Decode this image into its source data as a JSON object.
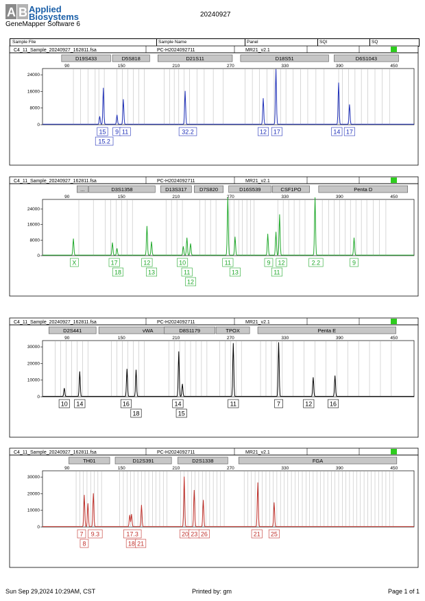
{
  "brand": {
    "line1": "Applied",
    "line2": "Biosystems",
    "software": "GeneMapper Software 6"
  },
  "report_date": "20240927",
  "table_header": {
    "sample_file": "Sample File",
    "sample_name": "Sample Name",
    "panel": "Panel",
    "sqi": "SQI",
    "sq": "SQ"
  },
  "footer": {
    "printed_at": "Sun Sep 29,2024 10:29AM, CST",
    "printed_by": "Printed by: gm",
    "page": "Page 1 of 1"
  },
  "colors": {
    "blue": "#1e2fb8",
    "green": "#1fa82a",
    "black": "#000000",
    "red": "#c0302a",
    "status": "#2ecc1e"
  },
  "chart_data": [
    {
      "type": "line",
      "sample_file": "C4_11_Sample_20240927_162811.fsa",
      "sample_name": "PC-H2024092711",
      "panel": "MR21_v2.1",
      "dye": "blue",
      "x_ticks": [
        90,
        150,
        210,
        270,
        330,
        390,
        450
      ],
      "xlim": [
        63,
        472
      ],
      "y_ticks": [
        0,
        8000,
        16000,
        24000
      ],
      "ylim": [
        0,
        28000
      ],
      "loci": [
        {
          "name": "D19S433",
          "start": 84,
          "end": 138
        },
        {
          "name": "D5S818",
          "start": 140,
          "end": 181
        },
        {
          "name": "D21S11",
          "start": 190,
          "end": 272
        },
        {
          "name": "D18S51",
          "start": 281,
          "end": 378
        },
        {
          "name": "D6S1043",
          "start": 384,
          "end": 455
        }
      ],
      "bins": [
        [
          97,
          105,
          113,
          121,
          125,
          131,
          145,
          151,
          157,
          163,
          169,
          175,
          197,
          203,
          208,
          213,
          219,
          225,
          233,
          241,
          251,
          262,
          286,
          294,
          302,
          310,
          318,
          325,
          331,
          339,
          347,
          355,
          364,
          373,
          389,
          393,
          400,
          407,
          414,
          421,
          429,
          437,
          445
        ]
      ],
      "peaks": [
        {
          "x": 126,
          "height": 3800
        },
        {
          "x": 130,
          "height": 17500
        },
        {
          "x": 145,
          "height": 4500
        },
        {
          "x": 152,
          "height": 12000
        },
        {
          "x": 220,
          "height": 16000
        },
        {
          "x": 306,
          "height": 12500
        },
        {
          "x": 320,
          "height": 26500
        },
        {
          "x": 389,
          "height": 20000
        },
        {
          "x": 401,
          "height": 9500
        }
      ],
      "label_rows": [
        [
          {
            "x": 129,
            "text": "15"
          },
          {
            "x": 145,
            "text": "9"
          },
          {
            "x": 154,
            "text": "11"
          },
          {
            "x": 223,
            "text": "32.2"
          },
          {
            "x": 306,
            "text": "12"
          },
          {
            "x": 321,
            "text": "17"
          },
          {
            "x": 387,
            "text": "14"
          },
          {
            "x": 401,
            "text": "17"
          }
        ],
        [
          {
            "x": 131,
            "text": "15.2"
          }
        ]
      ]
    },
    {
      "type": "line",
      "sample_file": "C4_11_Sample_20240927_162811.fsa",
      "sample_name": "PC-H2024092711",
      "panel": "MR21_v2.1",
      "dye": "green",
      "x_ticks": [
        90,
        150,
        210,
        270,
        330,
        390,
        450
      ],
      "xlim": [
        63,
        472
      ],
      "y_ticks": [
        0,
        8000,
        16000,
        24000
      ],
      "ylim": [
        0,
        30000
      ],
      "loci": [
        {
          "name": "...",
          "start": 101,
          "end": 113
        },
        {
          "name": "D3S1358",
          "start": 114,
          "end": 187
        },
        {
          "name": "D13S317",
          "start": 193,
          "end": 227
        },
        {
          "name": "D7S820",
          "start": 230,
          "end": 262
        },
        {
          "name": "D16S539",
          "start": 268,
          "end": 315
        },
        {
          "name": "CSF1PO",
          "start": 316,
          "end": 357
        },
        {
          "name": "Penta D",
          "start": 367,
          "end": 465
        }
      ],
      "bins": [
        [
          103,
          119,
          132,
          138,
          144,
          150,
          156,
          162,
          199,
          205,
          211,
          217,
          236,
          242,
          248,
          254,
          269,
          274,
          279,
          283,
          288,
          292,
          296,
          322,
          328,
          334,
          340,
          346,
          352,
          371,
          378,
          384,
          390,
          396,
          402,
          408,
          414,
          420,
          427,
          434,
          441
        ]
      ],
      "peaks": [
        {
          "x": 97,
          "height": 8500
        },
        {
          "x": 140,
          "height": 6500
        },
        {
          "x": 145,
          "height": 3500
        },
        {
          "x": 178,
          "height": 15000
        },
        {
          "x": 183,
          "height": 7000
        },
        {
          "x": 218,
          "height": 4500
        },
        {
          "x": 222,
          "height": 9000
        },
        {
          "x": 226,
          "height": 6000
        },
        {
          "x": 267,
          "height": 30000
        },
        {
          "x": 275,
          "height": 9500
        },
        {
          "x": 311,
          "height": 11000
        },
        {
          "x": 320,
          "height": 12000
        },
        {
          "x": 324,
          "height": 21000
        },
        {
          "x": 363,
          "height": 30000
        },
        {
          "x": 406,
          "height": 9000
        }
      ],
      "label_rows": [
        [
          {
            "x": 98,
            "text": "X"
          },
          {
            "x": 142,
            "text": "17"
          },
          {
            "x": 178,
            "text": "12"
          },
          {
            "x": 217,
            "text": "10"
          },
          {
            "x": 267,
            "text": "11"
          },
          {
            "x": 312,
            "text": "9"
          },
          {
            "x": 326,
            "text": "12"
          },
          {
            "x": 364,
            "text": "2.2"
          },
          {
            "x": 406,
            "text": "9"
          }
        ],
        [
          {
            "x": 146,
            "text": "18"
          },
          {
            "x": 183,
            "text": "13"
          },
          {
            "x": 222,
            "text": "11"
          },
          {
            "x": 275,
            "text": "13"
          },
          {
            "x": 321,
            "text": "11"
          }
        ],
        [
          {
            "x": 226,
            "text": "12"
          }
        ]
      ]
    },
    {
      "type": "line",
      "sample_file": "C4_11_Sample_20240927_162811.fsa",
      "sample_name": "PC-H2024092711",
      "panel": "MR21_v2.1",
      "dye": "black",
      "x_ticks": [
        90,
        150,
        210,
        270,
        330,
        390,
        450
      ],
      "xlim": [
        63,
        472
      ],
      "y_ticks": [
        0,
        10000,
        20000,
        30000
      ],
      "ylim": [
        0,
        35000
      ],
      "loci": [
        {
          "name": "D2S441",
          "start": 70,
          "end": 122
        },
        {
          "name": "vWA",
          "start": 125,
          "end": 233
        },
        {
          "name": "D8S1179",
          "start": 197,
          "end": 253
        },
        {
          "name": "TPOX",
          "start": 254,
          "end": 291
        },
        {
          "name": "Penta E",
          "start": 300,
          "end": 452
        }
      ],
      "bins": [
        [
          77,
          83,
          89,
          95,
          101,
          107,
          113,
          139,
          145,
          151,
          157,
          163,
          169,
          175,
          202,
          208,
          214,
          220,
          226,
          232,
          238,
          244,
          258,
          264,
          270,
          276,
          282,
          303,
          309,
          315,
          321,
          327,
          339,
          351,
          363,
          375,
          387,
          399,
          411,
          423,
          435,
          447
        ]
      ],
      "peaks": [
        {
          "x": 87,
          "height": 5000
        },
        {
          "x": 104,
          "height": 15000
        },
        {
          "x": 156,
          "height": 16500
        },
        {
          "x": 166,
          "height": 16000
        },
        {
          "x": 213,
          "height": 27000
        },
        {
          "x": 217,
          "height": 7500
        },
        {
          "x": 273,
          "height": 32000
        },
        {
          "x": 323,
          "height": 32500
        },
        {
          "x": 361,
          "height": 11500
        },
        {
          "x": 385,
          "height": 12500
        }
      ],
      "label_rows": [
        [
          {
            "x": 87,
            "text": "10"
          },
          {
            "x": 104,
            "text": "14"
          },
          {
            "x": 155,
            "text": "16"
          },
          {
            "x": 212,
            "text": "14"
          },
          {
            "x": 273,
            "text": "11"
          },
          {
            "x": 323,
            "text": "7"
          },
          {
            "x": 356,
            "text": "12"
          },
          {
            "x": 383,
            "text": "16"
          }
        ],
        [
          {
            "x": 166,
            "text": "18"
          },
          {
            "x": 216,
            "text": "15"
          }
        ]
      ]
    },
    {
      "type": "line",
      "sample_file": "C4_11_Sample_20240927_162811.fsa",
      "sample_name": "PC-H2024092711",
      "panel": "MR21_v2.1",
      "dye": "red",
      "x_ticks": [
        90,
        150,
        210,
        270,
        330,
        390,
        450
      ],
      "xlim": [
        63,
        472
      ],
      "y_ticks": [
        0,
        10000,
        20000,
        30000
      ],
      "ylim": [
        0,
        35000
      ],
      "loci": [
        {
          "name": "TH01",
          "start": 92,
          "end": 137
        },
        {
          "name": "D12S391",
          "start": 143,
          "end": 205
        },
        {
          "name": "D2S1338",
          "start": 212,
          "end": 267
        },
        {
          "name": "FGA",
          "start": 279,
          "end": 453
        }
      ],
      "bins": [
        [
          100,
          104,
          108,
          112,
          116,
          120,
          124,
          128,
          148,
          152,
          156,
          160,
          164,
          168,
          172,
          176,
          180,
          184,
          188,
          192,
          196,
          200,
          215,
          219,
          223,
          227,
          231,
          235,
          239,
          243,
          247,
          251,
          255,
          259,
          263,
          285,
          289,
          293,
          297,
          301,
          305,
          309,
          313,
          317,
          321,
          325,
          329,
          333,
          337,
          341,
          345,
          349,
          353,
          357,
          361,
          365,
          369,
          373,
          377,
          381,
          385,
          389,
          393,
          397,
          401,
          405,
          409,
          413,
          417,
          421,
          425,
          429,
          433,
          437,
          441,
          445,
          449
        ]
      ],
      "peaks": [
        {
          "x": 109,
          "height": 19000
        },
        {
          "x": 113,
          "height": 14000
        },
        {
          "x": 119,
          "height": 20000
        },
        {
          "x": 159,
          "height": 7000
        },
        {
          "x": 161,
          "height": 7500
        },
        {
          "x": 172,
          "height": 13000
        },
        {
          "x": 219,
          "height": 30000
        },
        {
          "x": 230,
          "height": 22000
        },
        {
          "x": 240,
          "height": 16000
        },
        {
          "x": 300,
          "height": 26500
        },
        {
          "x": 318,
          "height": 14500
        }
      ],
      "label_rows": [
        [
          {
            "x": 106,
            "text": "7"
          },
          {
            "x": 121,
            "text": "9.3"
          },
          {
            "x": 162,
            "text": "17.3"
          },
          {
            "x": 220,
            "text": "20"
          },
          {
            "x": 230,
            "text": "23"
          },
          {
            "x": 241,
            "text": "26"
          },
          {
            "x": 299,
            "text": "21"
          },
          {
            "x": 318,
            "text": "25"
          }
        ],
        [
          {
            "x": 109,
            "text": "8"
          },
          {
            "x": 161,
            "text": "18"
          },
          {
            "x": 171,
            "text": "21"
          }
        ]
      ]
    }
  ]
}
